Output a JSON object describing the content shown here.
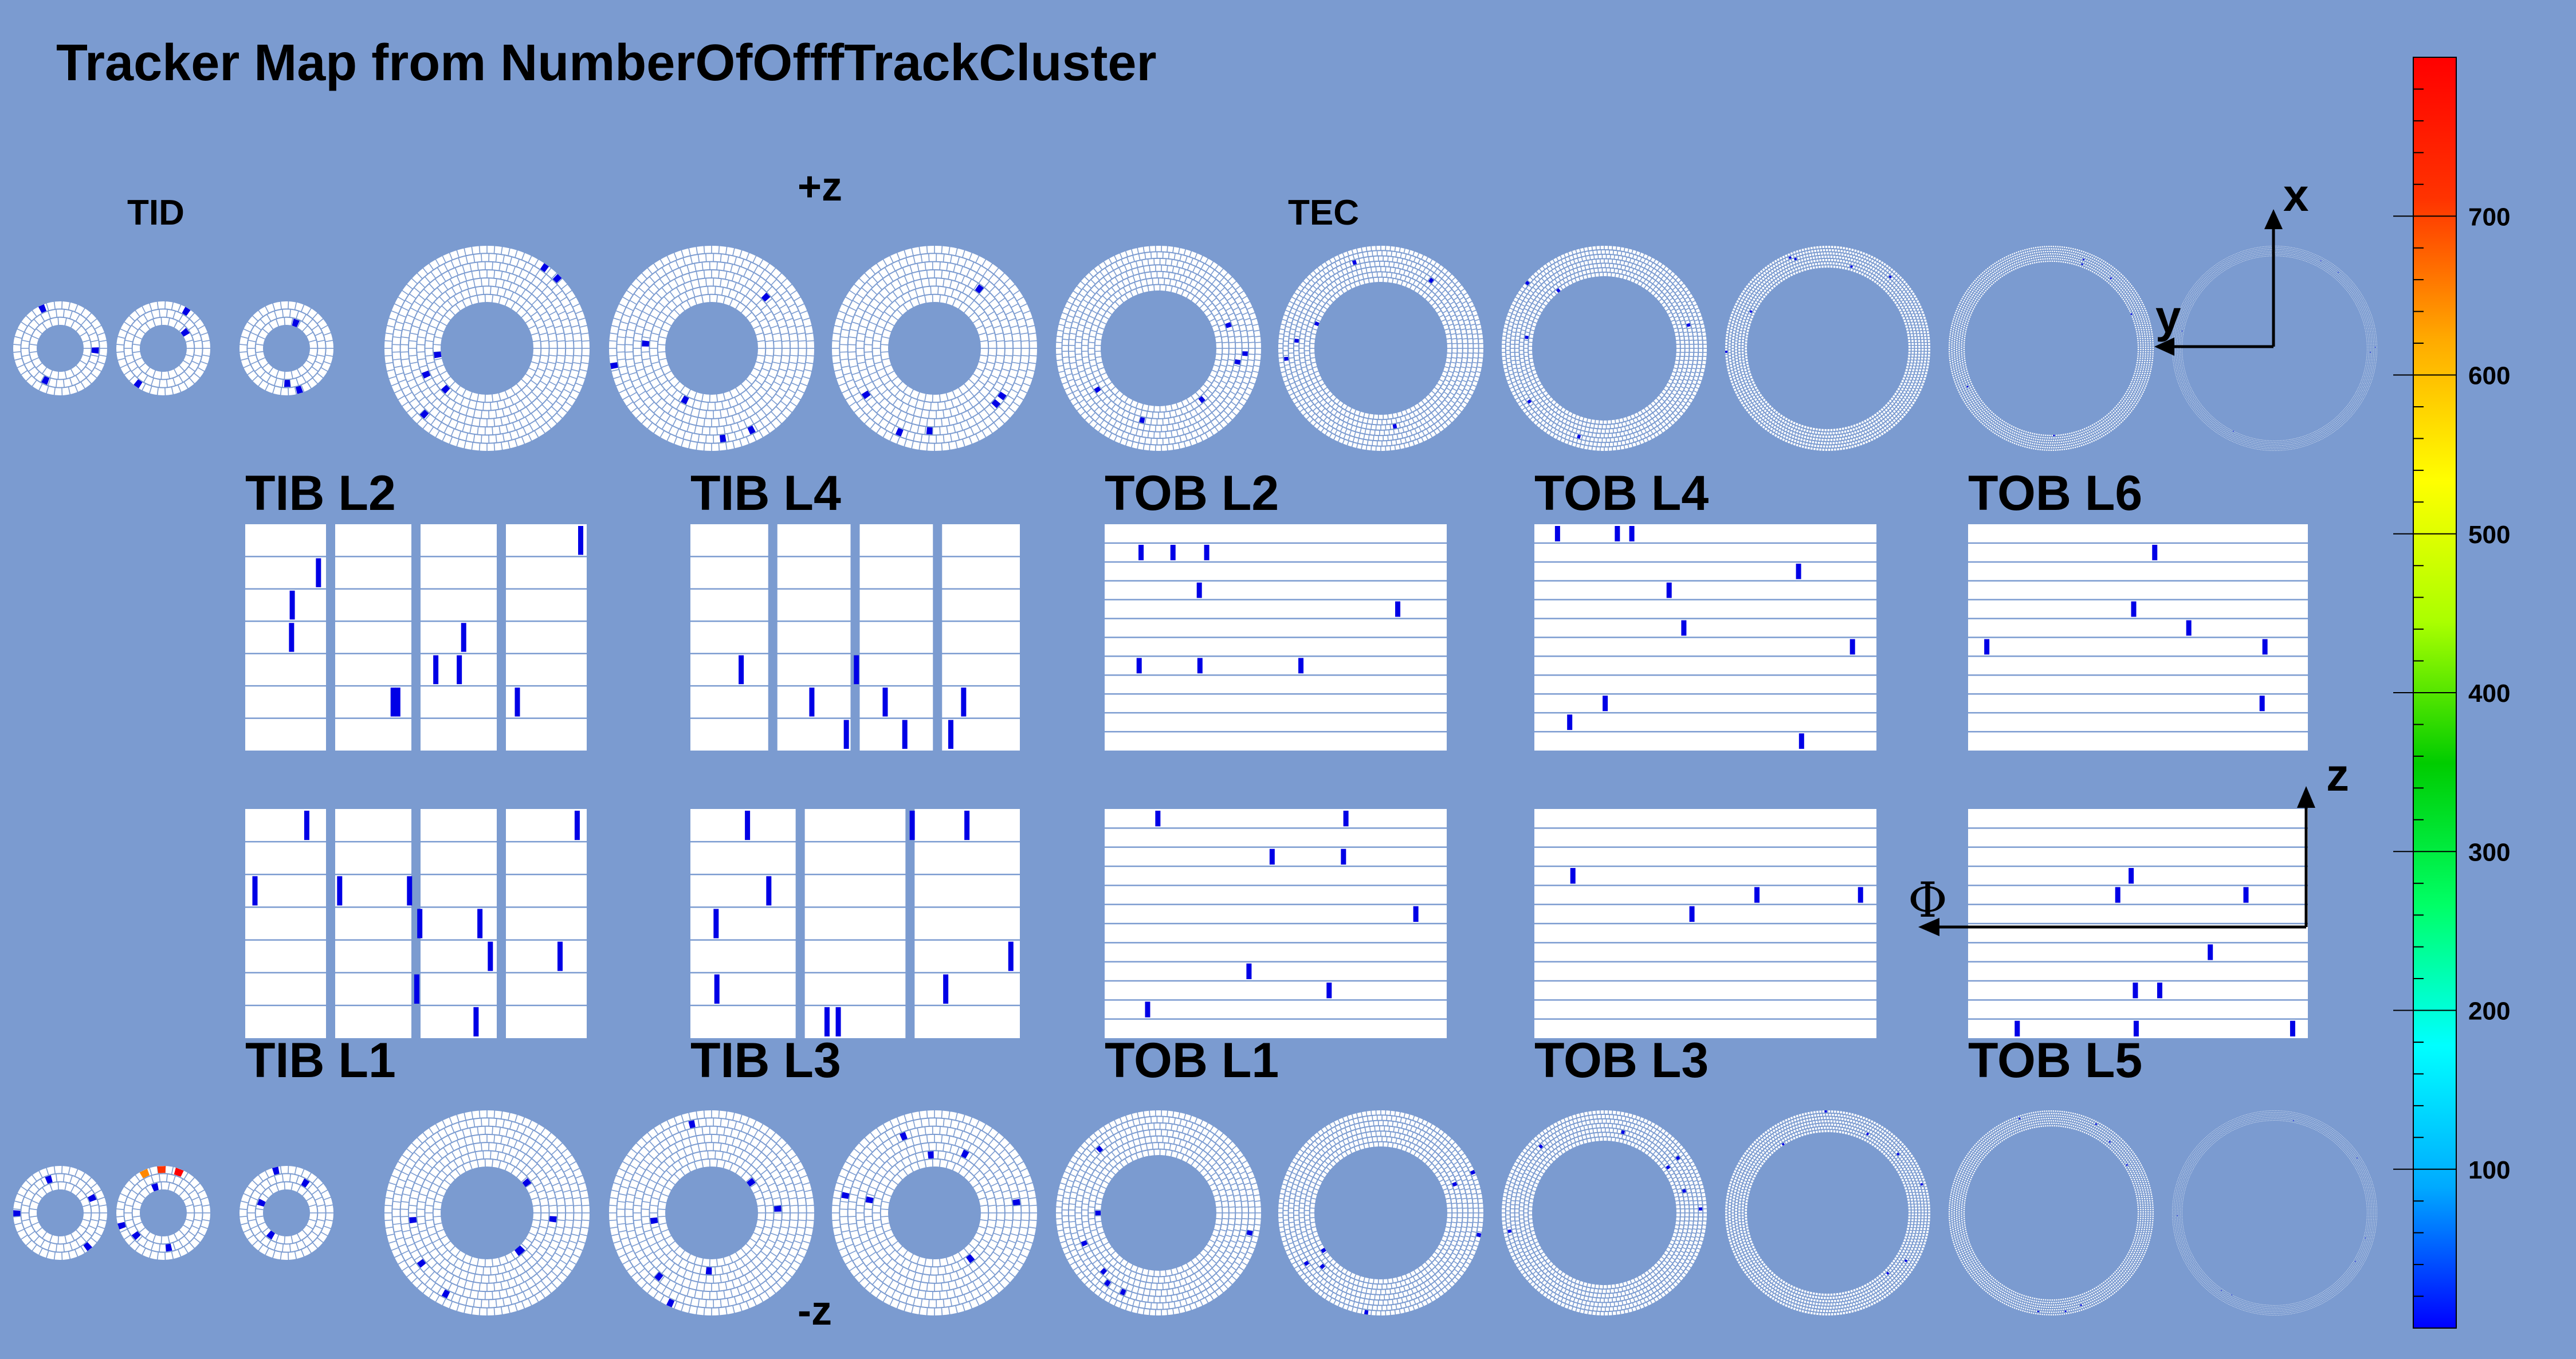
{
  "title": "Tracker Map from  NumberOfOfffTrackCluster",
  "labels": {
    "tid": "TID",
    "tec": "TEC",
    "plus_z": "+z",
    "minus_z": "-z",
    "axis_x": "x",
    "axis_y": "y",
    "axis_z": "z",
    "axis_phi": "Φ"
  },
  "barrel_layers": {
    "top": [
      "TIB L2",
      "TIB L4",
      "TOB L2",
      "TOB L4",
      "TOB L6"
    ],
    "bottom": [
      "TIB L1",
      "TIB L3",
      "TOB L1",
      "TOB L3",
      "TOB L5"
    ]
  },
  "colorbar": {
    "ticks": [
      "100",
      "200",
      "300",
      "400",
      "500",
      "600",
      "700"
    ],
    "range": [
      0,
      800
    ],
    "colors": [
      "#0000ff",
      "#00aaff",
      "#00ffff",
      "#00ff66",
      "#00cc00",
      "#aaff00",
      "#ffff00",
      "#ffaa00",
      "#ff3300",
      "#ff0000"
    ]
  },
  "colors": {
    "background": "#7b9bd0",
    "module": "#ffffff",
    "module_line": "#7b9bd0",
    "hit": "#0000e6"
  }
}
